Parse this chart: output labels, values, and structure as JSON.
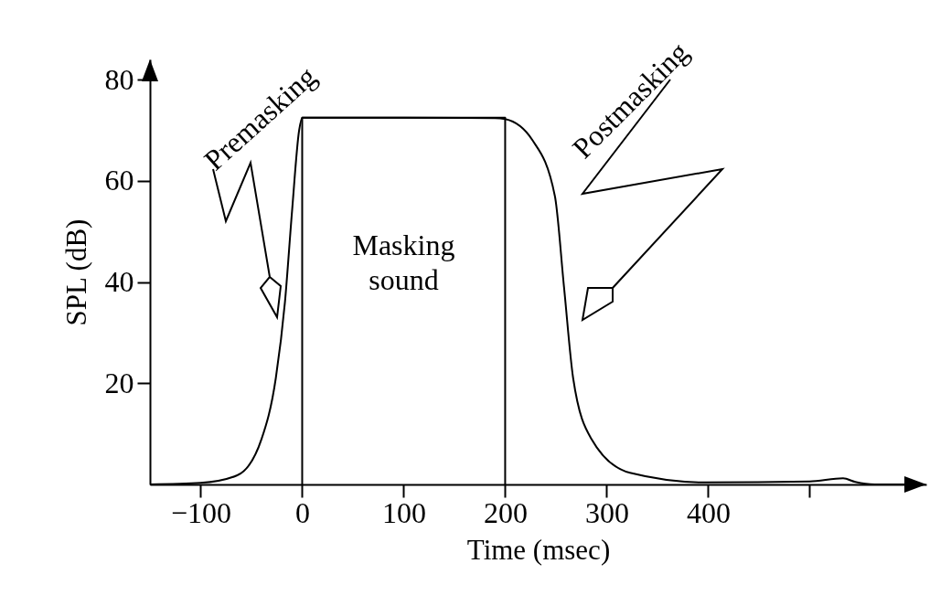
{
  "chart_data": {
    "type": "line",
    "xlabel": "Time (msec)",
    "ylabel": "SPL (dB)",
    "xlim": [
      -150,
      615
    ],
    "ylim": [
      0,
      84
    ],
    "xticks": [
      -100,
      0,
      100,
      200,
      300,
      400,
      {
        "value": 500,
        "label": null
      }
    ],
    "yticks": [
      20,
      40,
      60,
      80
    ],
    "grid": false,
    "marker": "none",
    "line_style": "solid",
    "series": [
      {
        "color": "#000000",
        "x": [
          -150,
          -100,
          -64,
          -40,
          -26,
          -17,
          -10,
          -3,
          0,
          100,
          190,
          200,
          227,
          249,
          258,
          267,
          285,
          323,
          398,
          500,
          533,
          545,
          564,
          600
        ],
        "values": [
          0,
          0.3,
          1.8,
          9,
          21,
          36,
          54,
          70,
          72.5,
          72.5,
          72.4,
          72.2,
          68,
          57,
          39,
          21,
          9,
          2.3,
          0.4,
          0.6,
          1.2,
          0.5,
          0,
          0
        ]
      },
      {
        "name": "Masking sound",
        "color": "#000000",
        "x": [
          0,
          0,
          200,
          200
        ],
        "values": [
          0,
          72.5,
          72.5,
          0
        ]
      }
    ],
    "annotations": [
      "Premasking",
      "Postmasking"
    ]
  }
}
